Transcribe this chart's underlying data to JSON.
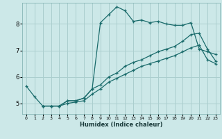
{
  "xlabel": "Humidex (Indice chaleur)",
  "bg_color": "#cce8e8",
  "grid_color": "#aacece",
  "line_color": "#1a6b6b",
  "xlim": [
    -0.5,
    23.5
  ],
  "ylim": [
    4.6,
    8.8
  ],
  "yticks": [
    5,
    6,
    7,
    8
  ],
  "xticks": [
    0,
    1,
    2,
    3,
    4,
    5,
    6,
    7,
    8,
    9,
    10,
    11,
    12,
    13,
    14,
    15,
    16,
    17,
    18,
    19,
    20,
    21,
    22,
    23
  ],
  "line1_x": [
    0,
    1,
    2,
    3,
    4,
    5,
    6,
    7,
    8,
    9,
    10,
    11,
    12,
    13,
    14,
    15,
    16,
    17,
    18,
    19,
    20,
    21,
    22,
    23
  ],
  "line1_y": [
    5.65,
    5.25,
    4.9,
    4.9,
    4.9,
    5.1,
    5.1,
    5.2,
    5.55,
    8.05,
    8.35,
    8.65,
    8.5,
    8.1,
    8.15,
    8.05,
    8.1,
    8.0,
    7.95,
    7.95,
    8.05,
    7.05,
    6.95,
    6.85
  ],
  "line2_x": [
    2,
    3,
    4,
    5,
    6,
    7,
    8,
    9,
    10,
    11,
    12,
    13,
    14,
    15,
    16,
    17,
    18,
    19,
    20,
    21,
    22,
    23
  ],
  "line2_y": [
    4.9,
    4.9,
    4.9,
    5.1,
    5.1,
    5.2,
    5.55,
    5.7,
    6.0,
    6.15,
    6.4,
    6.55,
    6.65,
    6.8,
    6.95,
    7.05,
    7.15,
    7.35,
    7.6,
    7.65,
    7.05,
    6.6
  ],
  "line3_x": [
    2,
    3,
    4,
    5,
    6,
    7,
    8,
    9,
    10,
    11,
    12,
    13,
    14,
    15,
    16,
    17,
    18,
    19,
    20,
    21,
    22,
    23
  ],
  "line3_y": [
    4.9,
    4.9,
    4.9,
    5.0,
    5.05,
    5.1,
    5.35,
    5.55,
    5.8,
    5.95,
    6.1,
    6.25,
    6.4,
    6.5,
    6.6,
    6.7,
    6.8,
    6.95,
    7.1,
    7.2,
    6.65,
    6.5
  ]
}
